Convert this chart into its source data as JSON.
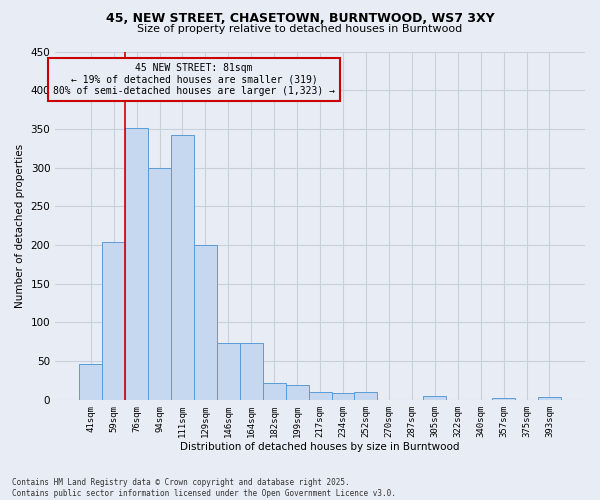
{
  "title_line1": "45, NEW STREET, CHASETOWN, BURNTWOOD, WS7 3XY",
  "title_line2": "Size of property relative to detached houses in Burntwood",
  "xlabel": "Distribution of detached houses by size in Burntwood",
  "ylabel": "Number of detached properties",
  "footer_line1": "Contains HM Land Registry data © Crown copyright and database right 2025.",
  "footer_line2": "Contains public sector information licensed under the Open Government Licence v3.0.",
  "annotation_line1": "45 NEW STREET: 81sqm",
  "annotation_line2": "← 19% of detached houses are smaller (319)",
  "annotation_line3": "80% of semi-detached houses are larger (1,323) →",
  "bar_color": "#c5d8f0",
  "bar_edge_color": "#5b9bd5",
  "vline_color": "#cc0000",
  "grid_color": "#c8d0dc",
  "bg_color": "#e8edf5",
  "categories": [
    "41sqm",
    "59sqm",
    "76sqm",
    "94sqm",
    "111sqm",
    "129sqm",
    "146sqm",
    "164sqm",
    "182sqm",
    "199sqm",
    "217sqm",
    "234sqm",
    "252sqm",
    "270sqm",
    "287sqm",
    "305sqm",
    "322sqm",
    "340sqm",
    "357sqm",
    "375sqm",
    "393sqm"
  ],
  "values": [
    46,
    204,
    351,
    300,
    342,
    200,
    74,
    74,
    22,
    19,
    10,
    9,
    10,
    0,
    0,
    5,
    0,
    0,
    3,
    0,
    4
  ],
  "vline_x_index": 2,
  "ylim": [
    0,
    450
  ],
  "yticks": [
    0,
    50,
    100,
    150,
    200,
    250,
    300,
    350,
    400,
    450
  ]
}
